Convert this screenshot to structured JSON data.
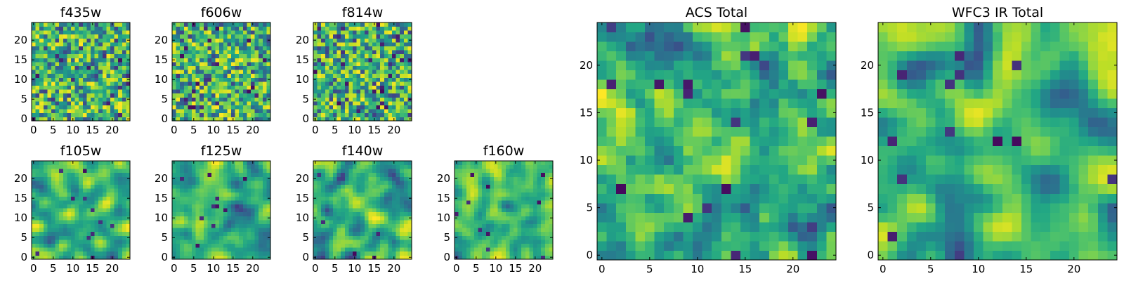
{
  "chart_data": [
    {
      "type": "heatmap",
      "title": "f435w",
      "kind": "noise",
      "xlim": [
        -0.5,
        24.5
      ],
      "ylim": [
        -0.5,
        24.5
      ],
      "xticks": [
        "0",
        "5",
        "10",
        "15",
        "20"
      ],
      "yticks": [
        "0",
        "5",
        "10",
        "15",
        "20"
      ],
      "colormap": "viridis",
      "grid": false
    },
    {
      "type": "heatmap",
      "title": "f606w",
      "kind": "noise",
      "xlim": [
        -0.5,
        24.5
      ],
      "ylim": [
        -0.5,
        24.5
      ],
      "xticks": [
        "0",
        "5",
        "10",
        "15",
        "20"
      ],
      "yticks": [
        "0",
        "5",
        "10",
        "15",
        "20"
      ],
      "colormap": "viridis",
      "grid": false
    },
    {
      "type": "heatmap",
      "title": "f814w",
      "kind": "noise",
      "xlim": [
        -0.5,
        24.5
      ],
      "ylim": [
        -0.5,
        24.5
      ],
      "xticks": [
        "0",
        "5",
        "10",
        "15",
        "20"
      ],
      "yticks": [
        "0",
        "5",
        "10",
        "15",
        "20"
      ],
      "colormap": "viridis",
      "grid": false
    },
    {
      "type": "heatmap",
      "title": "f105w",
      "kind": "smooth",
      "xlim": [
        -0.5,
        24.5
      ],
      "ylim": [
        -0.5,
        24.5
      ],
      "xticks": [
        "0",
        "5",
        "10",
        "15",
        "20"
      ],
      "yticks": [
        "0",
        "5",
        "10",
        "15",
        "20"
      ],
      "colormap": "viridis",
      "grid": false
    },
    {
      "type": "heatmap",
      "title": "f125w",
      "kind": "smooth",
      "xlim": [
        -0.5,
        24.5
      ],
      "ylim": [
        -0.5,
        24.5
      ],
      "xticks": [
        "0",
        "5",
        "10",
        "15",
        "20"
      ],
      "yticks": [
        "0",
        "5",
        "10",
        "15",
        "20"
      ],
      "colormap": "viridis",
      "grid": false
    },
    {
      "type": "heatmap",
      "title": "f140w",
      "kind": "smooth",
      "xlim": [
        -0.5,
        24.5
      ],
      "ylim": [
        -0.5,
        24.5
      ],
      "xticks": [
        "0",
        "5",
        "10",
        "15",
        "20"
      ],
      "yticks": [
        "0",
        "5",
        "10",
        "15",
        "20"
      ],
      "colormap": "viridis",
      "grid": false
    },
    {
      "type": "heatmap",
      "title": "f160w",
      "kind": "smooth",
      "xlim": [
        -0.5,
        24.5
      ],
      "ylim": [
        -0.5,
        24.5
      ],
      "xticks": [
        "0",
        "5",
        "10",
        "15",
        "20"
      ],
      "yticks": [
        "0",
        "5",
        "10",
        "15",
        "20"
      ],
      "colormap": "viridis",
      "grid": false
    },
    {
      "type": "heatmap",
      "title": "ACS Total",
      "kind": "medium",
      "xlim": [
        -0.5,
        24.5
      ],
      "ylim": [
        -0.5,
        24.5
      ],
      "xticks": [
        "0",
        "5",
        "10",
        "15",
        "20"
      ],
      "yticks": [
        "0",
        "5",
        "10",
        "15",
        "20"
      ],
      "colormap": "viridis",
      "grid": false
    },
    {
      "type": "heatmap",
      "title": "WFC3 IR Total",
      "kind": "smooth",
      "xlim": [
        -0.5,
        24.5
      ],
      "ylim": [
        -0.5,
        24.5
      ],
      "xticks": [
        "0",
        "5",
        "10",
        "15",
        "20"
      ],
      "yticks": [
        "0",
        "5",
        "10",
        "15",
        "20"
      ],
      "colormap": "viridis",
      "grid": false
    }
  ]
}
